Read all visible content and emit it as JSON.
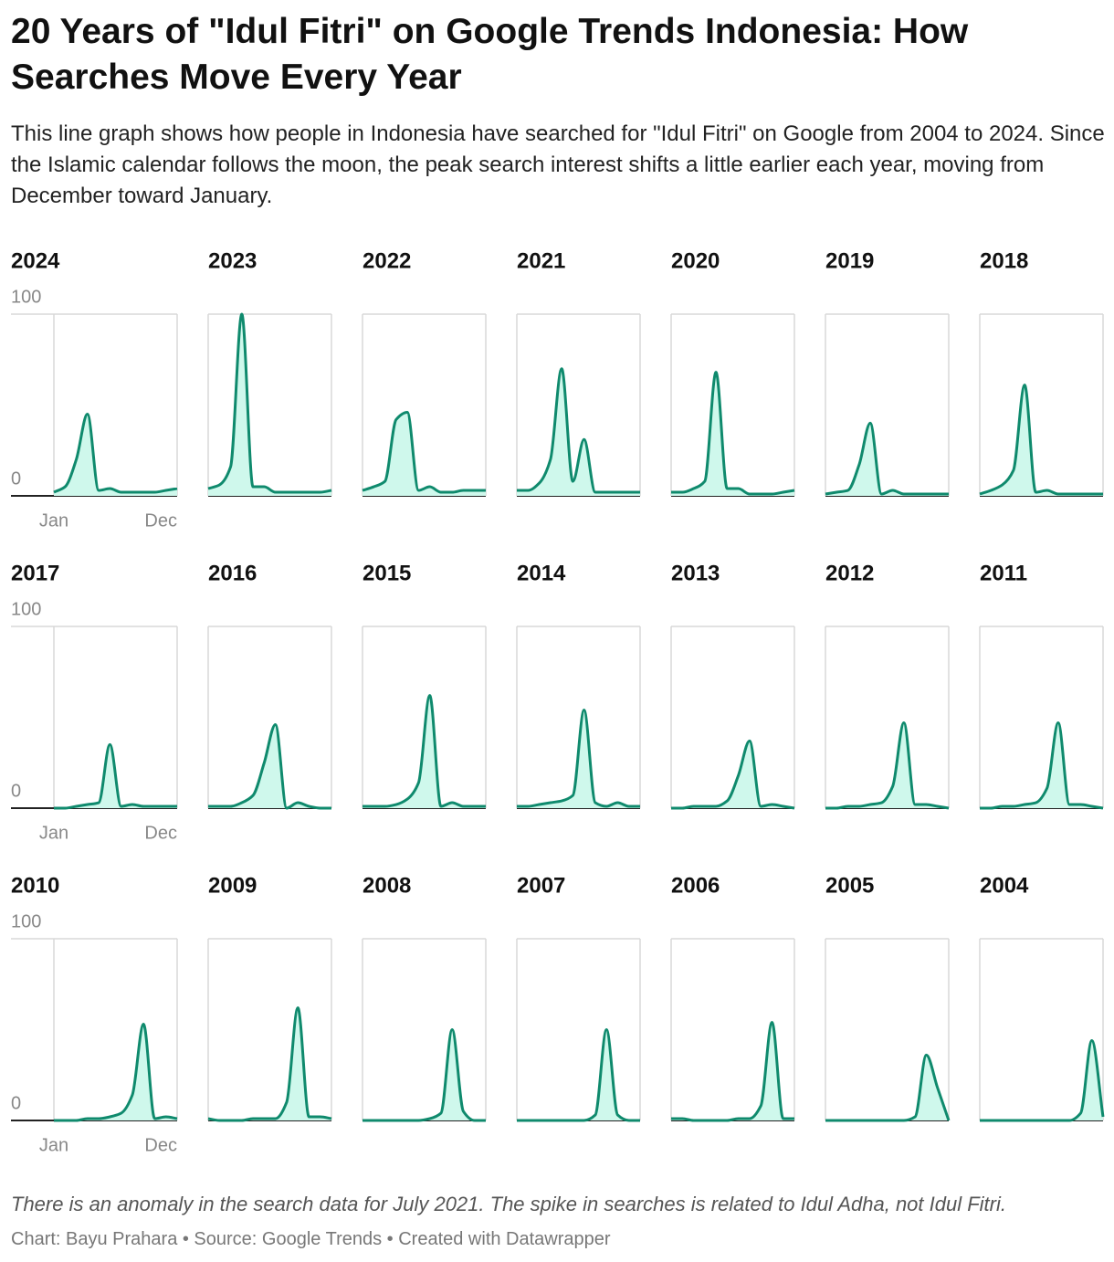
{
  "title": "20 Years of \"Idul Fitri\" on Google Trends Indonesia: How Searches Move Every Year",
  "subtitle": "This line graph shows how people in Indonesia have searched for \"Idul Fitri\" on Google from 2004 to 2024. Since the Islamic calendar follows the moon, the peak search interest shifts a little earlier each year, moving from December toward January.",
  "note": "There is an anomaly in the search data for July 2021. The spike in searches is related to Idul Adha, not Idul Fitri.",
  "credit": "Chart: Bayu Prahara • Source: Google Trends • Created with Datawrapper",
  "chart_data": [
    {
      "type": "area",
      "title": "2024",
      "categories": [
        "Jan",
        null,
        null,
        null,
        null,
        null,
        null,
        null,
        null,
        null,
        null,
        "Dec"
      ],
      "values": [
        2,
        5,
        20,
        45,
        3,
        4,
        2,
        2,
        2,
        2,
        3,
        4
      ],
      "color": "#0f8a6d",
      "fill_color": "#cff8ec",
      "ylim": [
        0,
        100
      ],
      "yticks": [
        0,
        100
      ]
    },
    {
      "type": "area",
      "title": "2023",
      "categories": [
        "Jan",
        null,
        null,
        null,
        null,
        null,
        null,
        null,
        null,
        null,
        null,
        "Dec"
      ],
      "values": [
        4,
        6,
        16,
        100,
        5,
        5,
        2,
        2,
        2,
        2,
        2,
        3
      ],
      "color": "#0f8a6d",
      "fill_color": "#cff8ec",
      "ylim": [
        0,
        100
      ],
      "yticks": [
        0,
        100
      ]
    },
    {
      "type": "area",
      "title": "2022",
      "categories": [
        "Jan",
        null,
        null,
        null,
        null,
        null,
        null,
        null,
        null,
        null,
        null,
        "Dec"
      ],
      "values": [
        3,
        5,
        8,
        42,
        46,
        3,
        5,
        2,
        2,
        3,
        3,
        3
      ],
      "color": "#0f8a6d",
      "fill_color": "#cff8ec",
      "ylim": [
        0,
        100
      ],
      "yticks": [
        0,
        100
      ]
    },
    {
      "type": "area",
      "title": "2021",
      "categories": [
        "Jan",
        null,
        null,
        null,
        null,
        null,
        null,
        null,
        null,
        null,
        null,
        "Dec"
      ],
      "values": [
        3,
        3,
        7,
        20,
        70,
        8,
        31,
        2,
        2,
        2,
        2,
        2
      ],
      "color": "#0f8a6d",
      "fill_color": "#cff8ec",
      "ylim": [
        0,
        100
      ],
      "yticks": [
        0,
        100
      ]
    },
    {
      "type": "area",
      "title": "2020",
      "categories": [
        "Jan",
        null,
        null,
        null,
        null,
        null,
        null,
        null,
        null,
        null,
        null,
        "Dec"
      ],
      "values": [
        2,
        2,
        4,
        8,
        68,
        4,
        4,
        1,
        1,
        1,
        2,
        3
      ],
      "color": "#0f8a6d",
      "fill_color": "#cff8ec",
      "ylim": [
        0,
        100
      ],
      "yticks": [
        0,
        100
      ]
    },
    {
      "type": "area",
      "title": "2019",
      "categories": [
        "Jan",
        null,
        null,
        null,
        null,
        null,
        null,
        null,
        null,
        null,
        null,
        "Dec"
      ],
      "values": [
        1,
        2,
        3,
        17,
        40,
        1,
        3,
        1,
        1,
        1,
        1,
        1
      ],
      "color": "#0f8a6d",
      "fill_color": "#cff8ec",
      "ylim": [
        0,
        100
      ],
      "yticks": [
        0,
        100
      ]
    },
    {
      "type": "area",
      "title": "2018",
      "categories": [
        "Jan",
        null,
        null,
        null,
        null,
        null,
        null,
        null,
        null,
        null,
        null,
        "Dec"
      ],
      "values": [
        1,
        3,
        6,
        14,
        61,
        2,
        3,
        1,
        1,
        1,
        1,
        1
      ],
      "color": "#0f8a6d",
      "fill_color": "#cff8ec",
      "ylim": [
        0,
        100
      ],
      "yticks": [
        0,
        100
      ]
    },
    {
      "type": "area",
      "title": "2017",
      "categories": [
        "Jan",
        null,
        null,
        null,
        null,
        null,
        null,
        null,
        null,
        null,
        null,
        "Dec"
      ],
      "values": [
        0,
        0,
        1,
        2,
        3,
        35,
        1,
        2,
        1,
        1,
        1,
        1
      ],
      "color": "#0f8a6d",
      "fill_color": "#cff8ec",
      "ylim": [
        0,
        100
      ],
      "yticks": [
        0,
        100
      ]
    },
    {
      "type": "area",
      "title": "2016",
      "categories": [
        "Jan",
        null,
        null,
        null,
        null,
        null,
        null,
        null,
        null,
        null,
        null,
        "Dec"
      ],
      "values": [
        1,
        1,
        1,
        3,
        7,
        25,
        46,
        0,
        3,
        1,
        0,
        0
      ],
      "color": "#0f8a6d",
      "fill_color": "#cff8ec",
      "ylim": [
        0,
        100
      ],
      "yticks": [
        0,
        100
      ]
    },
    {
      "type": "area",
      "title": "2015",
      "categories": [
        "Jan",
        null,
        null,
        null,
        null,
        null,
        null,
        null,
        null,
        null,
        null,
        "Dec"
      ],
      "values": [
        1,
        1,
        1,
        2,
        5,
        14,
        62,
        1,
        3,
        1,
        1,
        1
      ],
      "color": "#0f8a6d",
      "fill_color": "#cff8ec",
      "ylim": [
        0,
        100
      ],
      "yticks": [
        0,
        100
      ]
    },
    {
      "type": "area",
      "title": "2014",
      "categories": [
        "Jan",
        null,
        null,
        null,
        null,
        null,
        null,
        null,
        null,
        null,
        null,
        "Dec"
      ],
      "values": [
        1,
        1,
        2,
        3,
        4,
        7,
        54,
        3,
        1,
        3,
        1,
        1
      ],
      "color": "#0f8a6d",
      "fill_color": "#cff8ec",
      "ylim": [
        0,
        100
      ],
      "yticks": [
        0,
        100
      ]
    },
    {
      "type": "area",
      "title": "2013",
      "categories": [
        "Jan",
        null,
        null,
        null,
        null,
        null,
        null,
        null,
        null,
        null,
        null,
        "Dec"
      ],
      "values": [
        0,
        0,
        1,
        1,
        1,
        4,
        18,
        37,
        1,
        2,
        1,
        0
      ],
      "color": "#0f8a6d",
      "fill_color": "#cff8ec",
      "ylim": [
        0,
        100
      ],
      "yticks": [
        0,
        100
      ]
    },
    {
      "type": "area",
      "title": "2012",
      "categories": [
        "Jan",
        null,
        null,
        null,
        null,
        null,
        null,
        null,
        null,
        null,
        null,
        "Dec"
      ],
      "values": [
        0,
        0,
        1,
        1,
        2,
        3,
        12,
        47,
        2,
        2,
        1,
        0
      ],
      "color": "#0f8a6d",
      "fill_color": "#cff8ec",
      "ylim": [
        0,
        100
      ],
      "yticks": [
        0,
        100
      ]
    },
    {
      "type": "area",
      "title": "2011",
      "categories": [
        "Jan",
        null,
        null,
        null,
        null,
        null,
        null,
        null,
        null,
        null,
        null,
        "Dec"
      ],
      "values": [
        0,
        0,
        1,
        1,
        2,
        3,
        11,
        47,
        2,
        2,
        1,
        0
      ],
      "color": "#0f8a6d",
      "fill_color": "#cff8ec",
      "ylim": [
        0,
        100
      ],
      "yticks": [
        0,
        100
      ]
    },
    {
      "type": "area",
      "title": "2010",
      "categories": [
        "Jan",
        null,
        null,
        null,
        null,
        null,
        null,
        null,
        null,
        null,
        null,
        "Dec"
      ],
      "values": [
        0,
        0,
        0,
        1,
        1,
        2,
        4,
        14,
        53,
        1,
        2,
        1
      ],
      "color": "#0f8a6d",
      "fill_color": "#cff8ec",
      "ylim": [
        0,
        100
      ],
      "yticks": [
        0,
        100
      ]
    },
    {
      "type": "area",
      "title": "2009",
      "categories": [
        "Jan",
        null,
        null,
        null,
        null,
        null,
        null,
        null,
        null,
        null,
        null,
        "Dec"
      ],
      "values": [
        1,
        0,
        0,
        0,
        1,
        1,
        1,
        10,
        62,
        2,
        2,
        1
      ],
      "color": "#0f8a6d",
      "fill_color": "#cff8ec",
      "ylim": [
        0,
        100
      ],
      "yticks": [
        0,
        100
      ]
    },
    {
      "type": "area",
      "title": "2008",
      "categories": [
        "Jan",
        null,
        null,
        null,
        null,
        null,
        null,
        null,
        null,
        null,
        null,
        "Dec"
      ],
      "values": [
        0,
        0,
        0,
        0,
        0,
        0,
        1,
        4,
        50,
        5,
        0,
        0
      ],
      "color": "#0f8a6d",
      "fill_color": "#cff8ec",
      "ylim": [
        0,
        100
      ],
      "yticks": [
        0,
        100
      ]
    },
    {
      "type": "area",
      "title": "2007",
      "categories": [
        "Jan",
        null,
        null,
        null,
        null,
        null,
        null,
        null,
        null,
        null,
        null,
        "Dec"
      ],
      "values": [
        0,
        0,
        0,
        0,
        0,
        0,
        0,
        3,
        50,
        3,
        0,
        0
      ],
      "color": "#0f8a6d",
      "fill_color": "#cff8ec",
      "ylim": [
        0,
        100
      ],
      "yticks": [
        0,
        100
      ]
    },
    {
      "type": "area",
      "title": "2006",
      "categories": [
        "Jan",
        null,
        null,
        null,
        null,
        null,
        null,
        null,
        null,
        null,
        null,
        "Dec"
      ],
      "values": [
        1,
        1,
        0,
        0,
        0,
        0,
        1,
        1,
        8,
        54,
        1,
        1
      ],
      "color": "#0f8a6d",
      "fill_color": "#cff8ec",
      "ylim": [
        0,
        100
      ],
      "yticks": [
        0,
        100
      ]
    },
    {
      "type": "area",
      "title": "2005",
      "categories": [
        "Jan",
        null,
        null,
        null,
        null,
        null,
        null,
        null,
        null,
        null,
        null,
        "Dec"
      ],
      "values": [
        0,
        0,
        0,
        0,
        0,
        0,
        0,
        0,
        2,
        36,
        18,
        0
      ],
      "color": "#0f8a6d",
      "fill_color": "#cff8ec",
      "ylim": [
        0,
        100
      ],
      "yticks": [
        0,
        100
      ]
    },
    {
      "type": "area",
      "title": "2004",
      "categories": [
        "Jan",
        null,
        null,
        null,
        null,
        null,
        null,
        null,
        null,
        null,
        null,
        "Dec"
      ],
      "values": [
        0,
        0,
        0,
        0,
        0,
        0,
        0,
        0,
        0,
        4,
        44,
        2
      ],
      "color": "#0f8a6d",
      "fill_color": "#cff8ec",
      "ylim": [
        0,
        100
      ],
      "yticks": [
        0,
        100
      ]
    }
  ]
}
